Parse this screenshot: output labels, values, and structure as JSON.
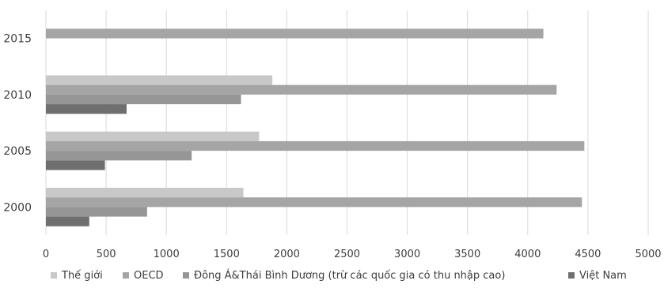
{
  "chart_data": {
    "type": "bar",
    "orientation": "horizontal",
    "categories": [
      "2000",
      "2005",
      "2010",
      "2015"
    ],
    "series": [
      {
        "name": "Thế giới",
        "color": "#c8c8c8",
        "values": [
          1640,
          1770,
          1880,
          null
        ]
      },
      {
        "name": "OECD",
        "color": "#a5a5a5",
        "values": [
          4450,
          4470,
          4240,
          4130
        ]
      },
      {
        "name": "Đông Á&Thái Bình Dương (trừ các quốc gia có thu nhập cao)",
        "color": "#969696",
        "values": [
          840,
          1210,
          1620,
          null
        ]
      },
      {
        "name": "Việt Nam",
        "color": "#6f6f6f",
        "values": [
          360,
          490,
          670,
          null
        ]
      }
    ],
    "xlim": [
      0,
      5000
    ],
    "xticks": [
      "0",
      "500",
      "1000",
      "1500",
      "2000",
      "2500",
      "3000",
      "3500",
      "4000",
      "4500",
      "5000"
    ],
    "grid": true,
    "legend_position": "bottom"
  }
}
